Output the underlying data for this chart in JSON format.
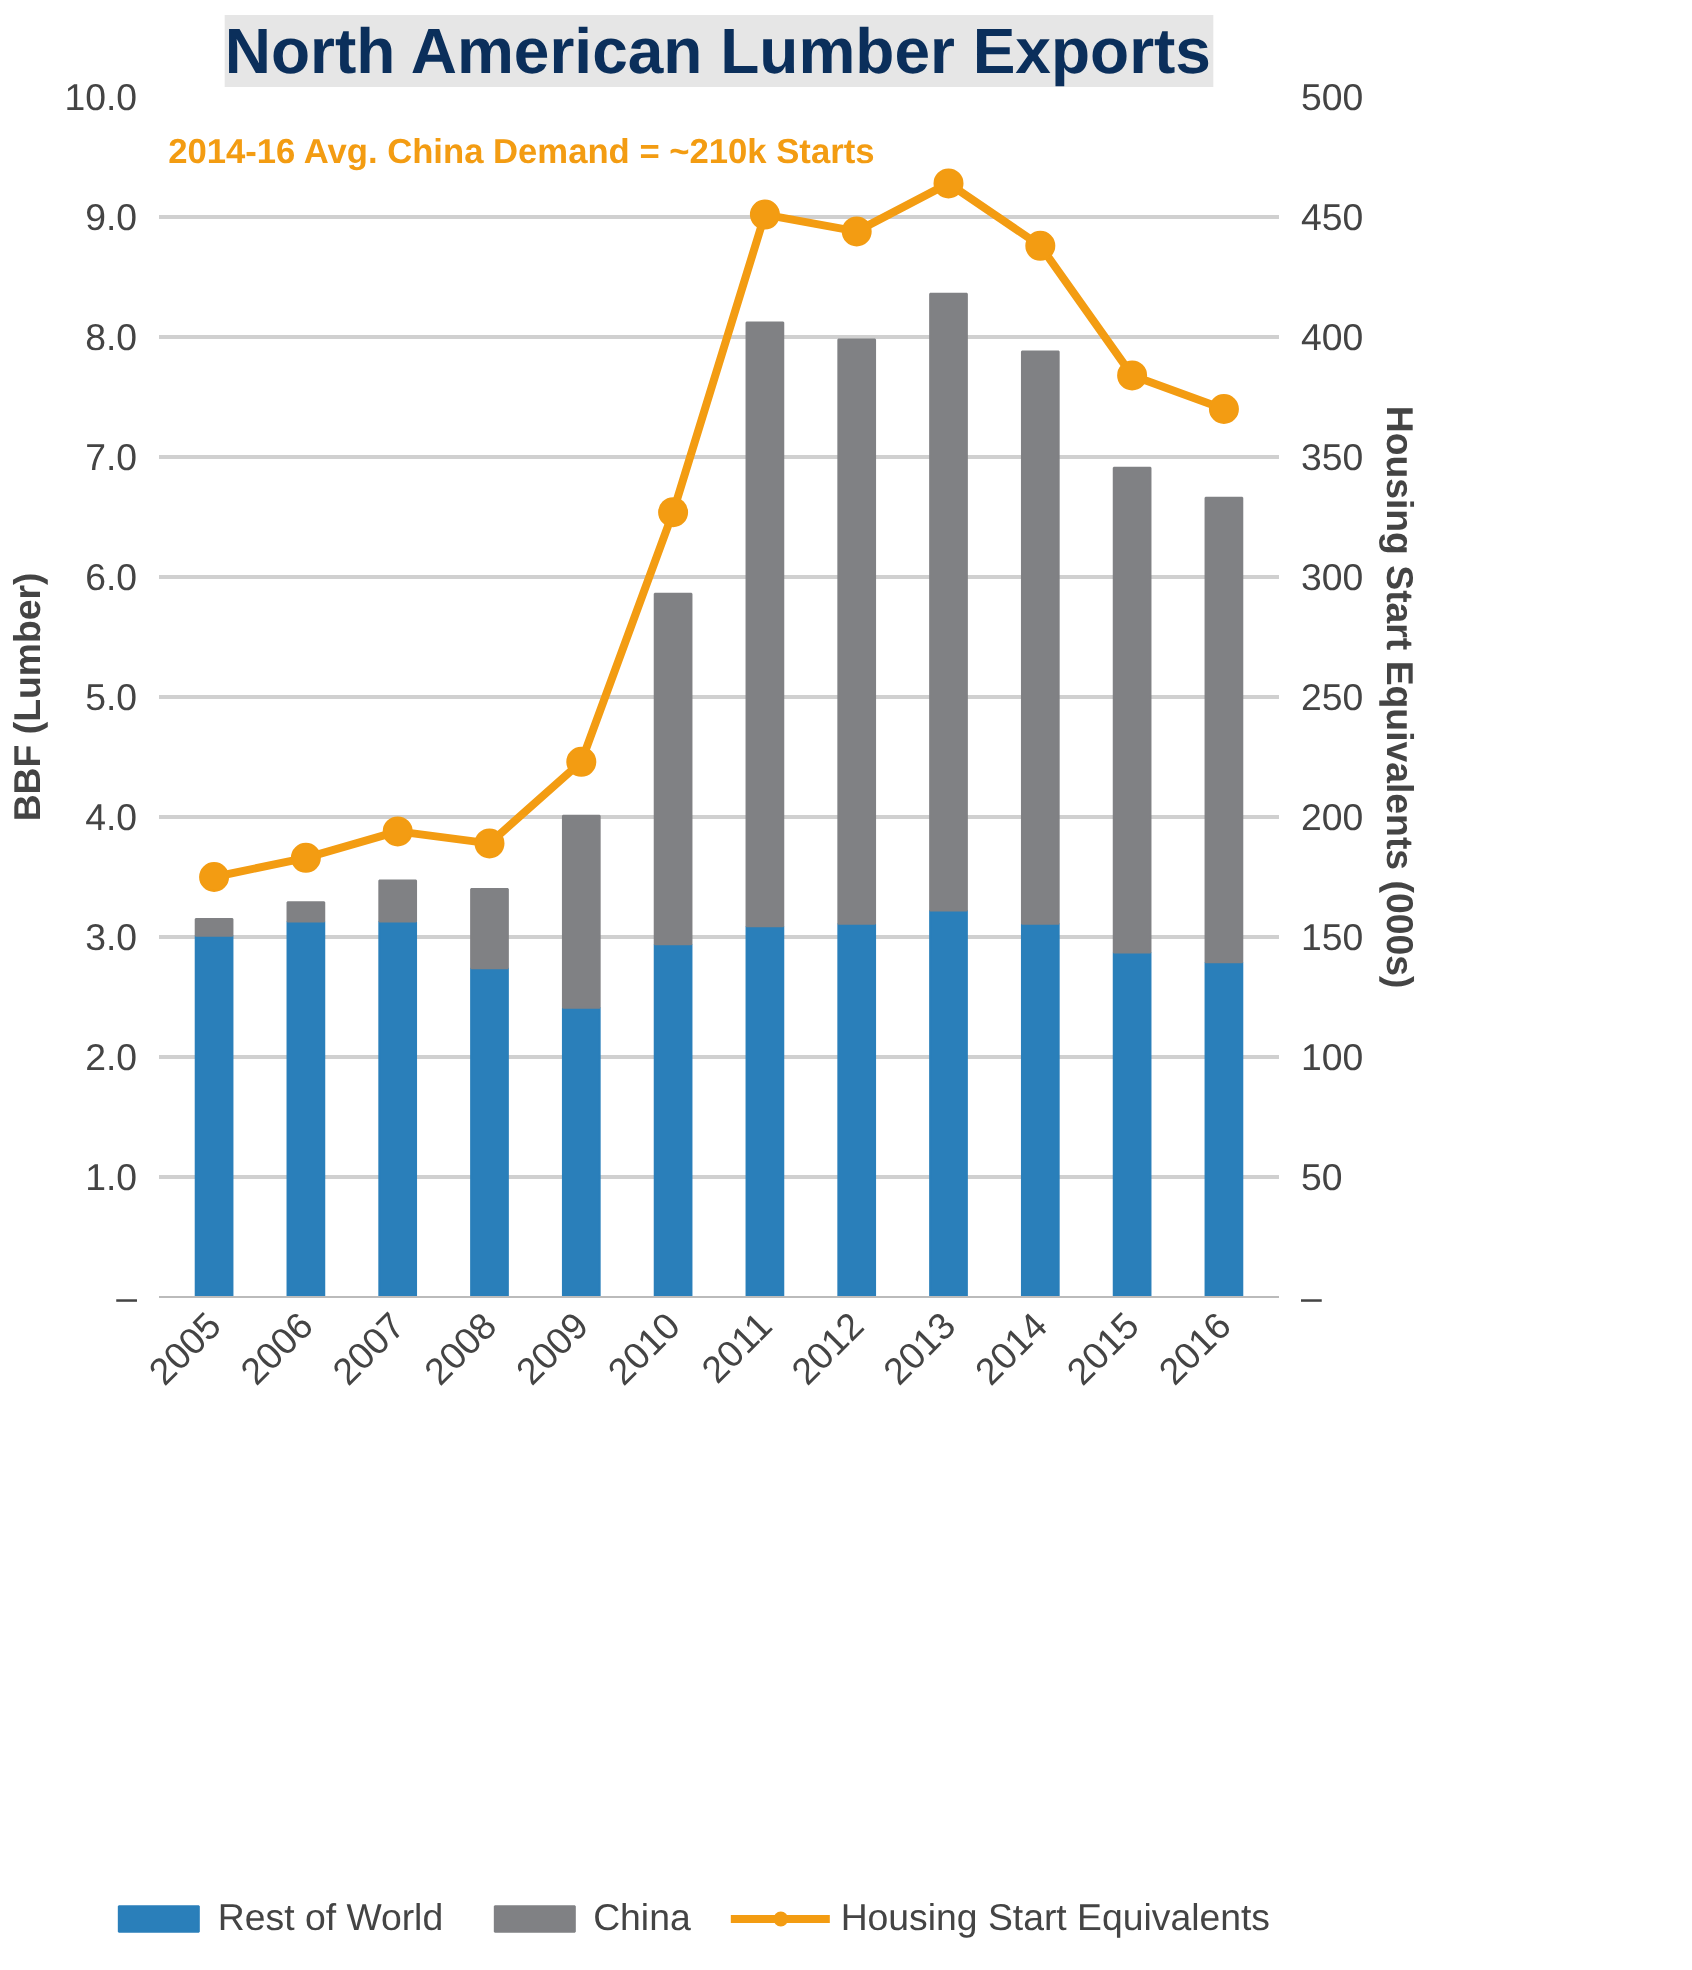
{
  "chart_data": {
    "type": "bar",
    "title": "North American Lumber Exports",
    "ylabel": "BBF (Lumber)",
    "y2label": "Housing Start Equivalents (000s)",
    "categories": [
      "2005",
      "2006",
      "2007",
      "2008",
      "2009",
      "2010",
      "2011",
      "2012",
      "2013",
      "2014",
      "2015",
      "2016"
    ],
    "stacked": true,
    "series": [
      {
        "name": "Rest of World",
        "color": "#2a7fba",
        "values": [
          3.01,
          3.13,
          3.13,
          2.74,
          2.41,
          2.94,
          3.09,
          3.11,
          3.22,
          3.11,
          2.87,
          2.79
        ]
      },
      {
        "name": "China",
        "color": "#808184",
        "values": [
          0.14,
          0.16,
          0.34,
          0.66,
          1.6,
          2.92,
          5.03,
          4.87,
          5.14,
          4.77,
          4.04,
          3.87
        ]
      },
      {
        "name": "Housing Start Equivalents",
        "type": "line",
        "axis": "y2",
        "color": "#f39c12",
        "marker": "circle",
        "values": [
          175,
          183,
          194,
          189,
          223,
          327,
          451,
          444,
          464,
          438,
          384,
          370
        ]
      }
    ],
    "ylim": [
      0,
      10
    ],
    "yticks": [
      {
        "value": 0,
        "label": "–"
      },
      {
        "value": 1,
        "label": "1.0"
      },
      {
        "value": 2,
        "label": "2.0"
      },
      {
        "value": 3,
        "label": "3.0"
      },
      {
        "value": 4,
        "label": "4.0"
      },
      {
        "value": 5,
        "label": "5.0"
      },
      {
        "value": 6,
        "label": "6.0"
      },
      {
        "value": 7,
        "label": "7.0"
      },
      {
        "value": 8,
        "label": "8.0"
      },
      {
        "value": 9,
        "label": "9.0"
      },
      {
        "value": 10,
        "label": "10.0"
      }
    ],
    "y2lim": [
      0,
      500
    ],
    "y2ticks": [
      {
        "value": 0,
        "label": "–"
      },
      50,
      100,
      150,
      200,
      250,
      300,
      350,
      400,
      450,
      500
    ],
    "annotations": [
      "2014-16 Avg. China Demand = ~210k Starts"
    ],
    "grid": "y",
    "legend": "bottom"
  }
}
